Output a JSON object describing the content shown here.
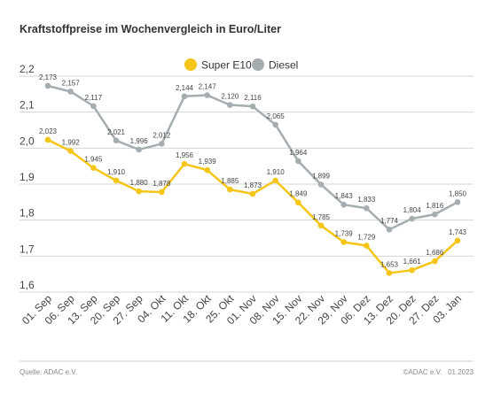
{
  "chart_data": {
    "type": "line",
    "title": "Kraftstoffpreise im Wochenvergleich in Euro/Liter",
    "categories": [
      "01. Sep",
      "06. Sep",
      "13. Sep",
      "20. Sep",
      "27. Sep",
      "04. Okt",
      "11. Okt",
      "18. Okt",
      "25. Okt",
      "01. Nov",
      "08. Nov",
      "15. Nov",
      "22. Nov",
      "29. Nov",
      "06. Dez",
      "13. Dez",
      "20. Dez",
      "27. Dez",
      "03. Jan"
    ],
    "ylim": [
      1.6,
      2.2
    ],
    "yticks": [
      1.6,
      1.7,
      1.8,
      1.9,
      2.0,
      2.1,
      2.2
    ],
    "ytick_labels": [
      "1,6",
      "1,7",
      "1,8",
      "1,9",
      "2,0",
      "2,1",
      "2,2"
    ],
    "grid": true,
    "legend_position": "top-right",
    "series": [
      {
        "name": "Super E10",
        "color": "#f5c518",
        "values": [
          2.023,
          1.992,
          1.945,
          1.91,
          1.88,
          1.878,
          1.956,
          1.939,
          1.885,
          1.873,
          1.91,
          1.849,
          1.785,
          1.739,
          1.729,
          1.653,
          1.661,
          1.686,
          1.743
        ],
        "labels": [
          "2,023",
          "1,992",
          "1,945",
          "1,910",
          "1,880",
          "1,878",
          "1,956",
          "1,939",
          "1,885",
          "1,873",
          "1,910",
          "1,849",
          "1,785",
          "1,739",
          "1,729",
          "1,653",
          "1,661",
          "1,686",
          "1,743"
        ]
      },
      {
        "name": "Diesel",
        "color": "#a5adb0",
        "values": [
          2.173,
          2.157,
          2.117,
          2.021,
          1.996,
          2.012,
          2.144,
          2.147,
          2.12,
          2.116,
          2.065,
          1.964,
          1.899,
          1.843,
          1.833,
          1.774,
          1.804,
          1.816,
          1.85
        ],
        "labels": [
          "2,173",
          "2,157",
          "2,117",
          "2,021",
          "1,996",
          "2,012",
          "2,144",
          "2,147",
          "2,120",
          "2,116",
          "2,065",
          "1,964",
          "1,899",
          "1,843",
          "1,833",
          "1,774",
          "1,804",
          "1,816",
          "1,850"
        ]
      }
    ]
  },
  "footer": {
    "source": "Quelle: ADAC e.V.",
    "credit": "©ADAC e.V.   01.2023"
  }
}
